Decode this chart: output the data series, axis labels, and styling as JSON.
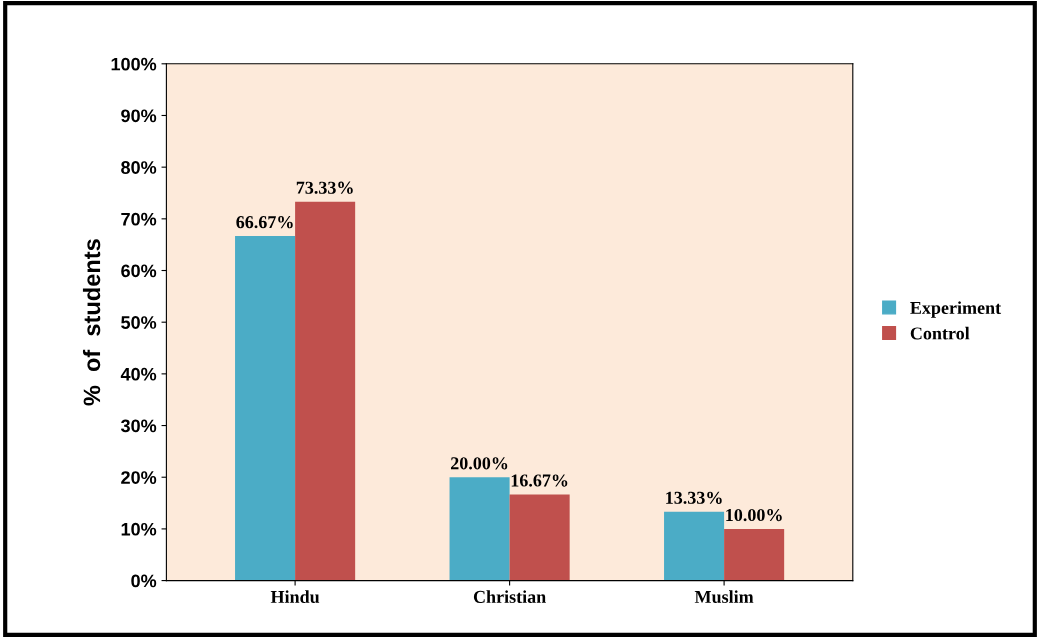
{
  "chart_data": {
    "type": "bar",
    "ylabel": "%  of  students",
    "categories": [
      "Hindu",
      "Christian",
      "Muslim"
    ],
    "series": [
      {
        "name": "Experiment",
        "color": "#4bacc6",
        "values": [
          66.67,
          20.0,
          13.33
        ],
        "value_labels": [
          "66.67%",
          "20.00%",
          "13.33%"
        ]
      },
      {
        "name": "Control",
        "color": "#c0504d",
        "values": [
          73.33,
          16.67,
          10.0
        ],
        "value_labels": [
          "73.33%",
          "16.67%",
          "10.00%"
        ]
      }
    ],
    "ylim": [
      0,
      100
    ],
    "yticks": [
      {
        "value": 0,
        "label": "0%"
      },
      {
        "value": 10,
        "label": "10%"
      },
      {
        "value": 20,
        "label": "20%"
      },
      {
        "value": 30,
        "label": "30%"
      },
      {
        "value": 40,
        "label": "40%"
      },
      {
        "value": 50,
        "label": "50%"
      },
      {
        "value": 60,
        "label": "60%"
      },
      {
        "value": 70,
        "label": "70%"
      },
      {
        "value": 80,
        "label": "80%"
      },
      {
        "value": 90,
        "label": "90%"
      },
      {
        "value": 100,
        "label": "100%"
      }
    ],
    "grid": false,
    "legend": "right"
  }
}
